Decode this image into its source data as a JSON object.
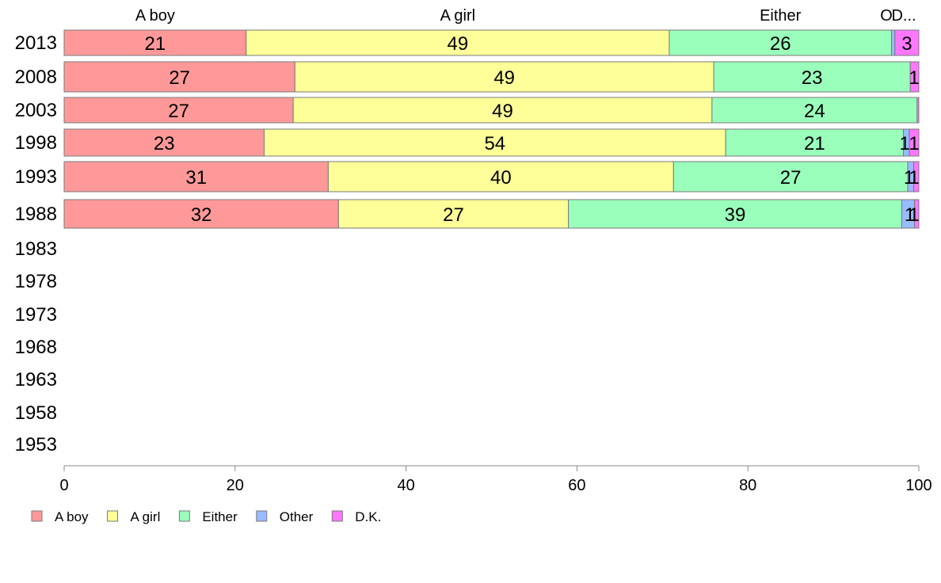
{
  "chart_data": {
    "type": "bar",
    "orientation": "horizontal",
    "stacked": true,
    "categories": [
      "2013",
      "2008",
      "2003",
      "1998",
      "1993",
      "1988",
      "1983",
      "1978",
      "1973",
      "1968",
      "1963",
      "1958",
      "1953"
    ],
    "series": [
      {
        "name": "A boy",
        "color": "#ff9999",
        "values": [
          21.3,
          27.0,
          26.8,
          23.4,
          30.9,
          32.1,
          null,
          null,
          null,
          null,
          null,
          null,
          null
        ],
        "labels": [
          "21",
          "27",
          "27",
          "23",
          "31",
          "32",
          "",
          "",
          "",
          "",
          "",
          "",
          ""
        ]
      },
      {
        "name": "A girl",
        "color": "#ffff99",
        "values": [
          49.5,
          49.0,
          49.0,
          54.0,
          40.4,
          26.9,
          null,
          null,
          null,
          null,
          null,
          null,
          null
        ],
        "labels": [
          "49",
          "49",
          "49",
          "54",
          "40",
          "27",
          "",
          "",
          "",
          "",
          "",
          "",
          ""
        ]
      },
      {
        "name": "Either",
        "color": "#99ffbb",
        "values": [
          26.0,
          23.0,
          24.0,
          20.8,
          27.4,
          39.0,
          null,
          null,
          null,
          null,
          null,
          null,
          null
        ],
        "labels": [
          "26",
          "23",
          "24",
          "21",
          "27",
          "39",
          "",
          "",
          "",
          "",
          "",
          "",
          ""
        ]
      },
      {
        "name": "Other",
        "color": "#99bbff",
        "values": [
          0.4,
          0.0,
          0.0,
          0.7,
          0.7,
          1.5,
          null,
          null,
          null,
          null,
          null,
          null,
          null
        ],
        "labels": [
          "",
          "",
          "",
          "1",
          "1",
          "1",
          "",
          "",
          "",
          "",
          "",
          "",
          ""
        ]
      },
      {
        "name": "D.K.",
        "color": "#ff77ff",
        "values": [
          2.8,
          1.0,
          0.2,
          1.1,
          0.6,
          0.5,
          null,
          null,
          null,
          null,
          null,
          null,
          null
        ],
        "labels": [
          "3",
          "1",
          "",
          "1",
          "1",
          "1",
          "",
          "",
          "",
          "",
          "",
          "",
          ""
        ]
      }
    ],
    "column_headers": [
      "A boy",
      "A girl",
      "Either",
      "O",
      "D..."
    ],
    "xlim": [
      0,
      100
    ],
    "xticks": [
      "0",
      "20",
      "40",
      "60",
      "80",
      "100"
    ],
    "title": "",
    "xlabel": "",
    "ylabel": "",
    "grid": false,
    "legend_position": "bottom-left"
  }
}
